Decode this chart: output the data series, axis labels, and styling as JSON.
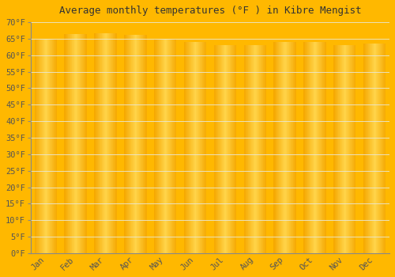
{
  "title": "Average monthly temperatures (°F ) in Kibre Mengist",
  "months": [
    "Jan",
    "Feb",
    "Mar",
    "Apr",
    "May",
    "Jun",
    "Jul",
    "Aug",
    "Sep",
    "Oct",
    "Nov",
    "Dec"
  ],
  "values": [
    65.0,
    66.5,
    66.7,
    66.2,
    65.0,
    64.0,
    63.0,
    63.0,
    64.0,
    64.0,
    63.0,
    63.5
  ],
  "bar_color_edge": "#F5A800",
  "bar_color_center": "#FFD44A",
  "background_color": "#FFB800",
  "plot_bg_color": "#FFF8E8",
  "grid_color": "#E8E8D8",
  "ylim": [
    0,
    70
  ],
  "yticks": [
    0,
    5,
    10,
    15,
    20,
    25,
    30,
    35,
    40,
    45,
    50,
    55,
    60,
    65,
    70
  ],
  "ytick_labels": [
    "0°F",
    "5°F",
    "10°F",
    "15°F",
    "20°F",
    "25°F",
    "30°F",
    "35°F",
    "40°F",
    "45°F",
    "50°F",
    "55°F",
    "60°F",
    "65°F",
    "70°F"
  ],
  "title_fontsize": 9,
  "tick_fontsize": 7.5,
  "bar_width": 0.75,
  "n_gradient_strips": 40
}
